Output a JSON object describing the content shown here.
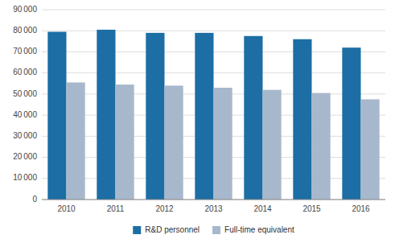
{
  "chart_data": {
    "type": "bar",
    "categories": [
      "2010",
      "2011",
      "2012",
      "2013",
      "2014",
      "2015",
      "2016"
    ],
    "series": [
      {
        "name": "R&D personnel",
        "color": "#1c6ea4",
        "values": [
          79500,
          80500,
          79000,
          79000,
          77500,
          76000,
          72000
        ]
      },
      {
        "name": "Full-time equivalent",
        "color": "#a8b8cc",
        "values": [
          55500,
          54500,
          54000,
          53000,
          52000,
          50500,
          47500
        ]
      }
    ],
    "ylim": [
      0,
      90000
    ],
    "yticks": [
      0,
      {
        "value": 10000,
        "label": "10 000"
      },
      {
        "value": 20000,
        "label": "20 000"
      },
      {
        "value": 30000,
        "label": "30 000"
      },
      {
        "value": 40000,
        "label": "40 000"
      },
      {
        "value": 50000,
        "label": "50 000"
      },
      {
        "value": 60000,
        "label": "60 000"
      },
      {
        "value": 70000,
        "label": "70 000"
      },
      {
        "value": 80000,
        "label": "80 000"
      },
      {
        "value": 90000,
        "label": "90 000"
      }
    ],
    "grid": true,
    "legend": "bottom"
  }
}
